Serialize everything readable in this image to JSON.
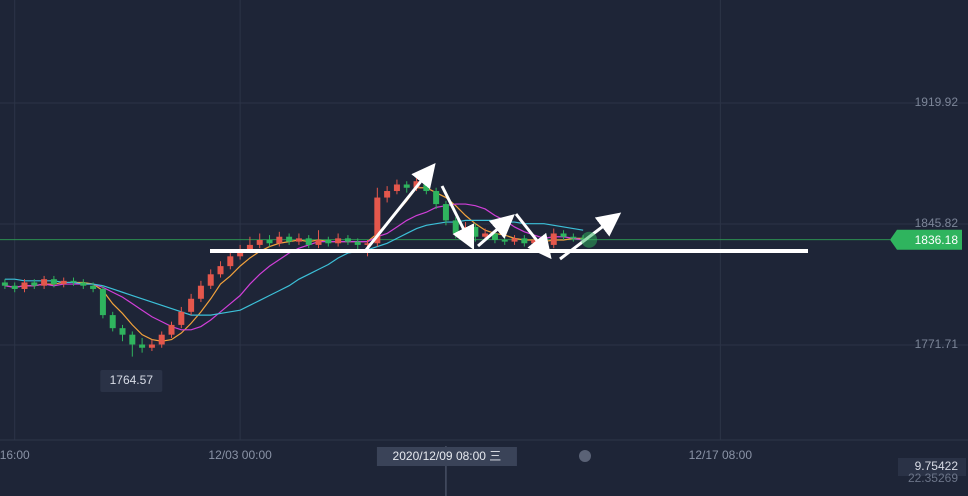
{
  "chart_data": {
    "type": "candlestick",
    "up_color": "#e4574c",
    "down_color": "#2fb45e",
    "open": [
      1810,
      1808,
      1806,
      1810,
      1808,
      1812,
      1809,
      1811,
      1810,
      1808,
      1806,
      1790,
      1782,
      1778,
      1772,
      1770,
      1772,
      1778,
      1784,
      1792,
      1800,
      1808,
      1815,
      1820,
      1826,
      1830,
      1833,
      1836,
      1834,
      1838,
      1835,
      1837,
      1833,
      1836,
      1834,
      1837,
      1835,
      1833,
      1834,
      1862,
      1866,
      1870,
      1868,
      1872,
      1866,
      1858,
      1848,
      1840,
      1844,
      1838,
      1840,
      1836,
      1835,
      1837,
      1834,
      1836,
      1833,
      1840,
      1838,
      1837
    ],
    "high": [
      1812,
      1810,
      1812,
      1812,
      1814,
      1814,
      1813,
      1813,
      1812,
      1810,
      1808,
      1792,
      1784,
      1780,
      1776,
      1775,
      1780,
      1786,
      1795,
      1803,
      1811,
      1818,
      1823,
      1829,
      1833,
      1838,
      1840,
      1839,
      1841,
      1840,
      1840,
      1839,
      1842,
      1838,
      1840,
      1839,
      1837,
      1836,
      1868,
      1869,
      1873,
      1872,
      1876,
      1874,
      1868,
      1860,
      1850,
      1847,
      1846,
      1843,
      1842,
      1838,
      1839,
      1839,
      1838,
      1838,
      1843,
      1842,
      1840,
      1839
    ],
    "low": [
      1806,
      1804,
      1804,
      1806,
      1806,
      1807,
      1807,
      1808,
      1806,
      1804,
      1788,
      1780,
      1774,
      1764.57,
      1767,
      1768,
      1770,
      1776,
      1782,
      1790,
      1798,
      1806,
      1813,
      1818,
      1824,
      1828,
      1831,
      1832,
      1832,
      1833,
      1833,
      1831,
      1831,
      1832,
      1832,
      1833,
      1830,
      1826,
      1832,
      1859,
      1864,
      1865,
      1866,
      1864,
      1855,
      1845,
      1837,
      1838,
      1835,
      1836,
      1834,
      1833,
      1833,
      1832,
      1832,
      1831,
      1831,
      1836,
      1835,
      1834
    ],
    "close": [
      1808,
      1806,
      1810,
      1808,
      1812,
      1809,
      1811,
      1810,
      1808,
      1806,
      1790,
      1782,
      1778,
      1772,
      1770,
      1772,
      1778,
      1784,
      1792,
      1800,
      1808,
      1815,
      1820,
      1826,
      1830,
      1833,
      1836,
      1834,
      1838,
      1835,
      1837,
      1833,
      1836,
      1834,
      1837,
      1835,
      1833,
      1834,
      1862,
      1866,
      1870,
      1868,
      1872,
      1866,
      1858,
      1848,
      1840,
      1844,
      1838,
      1840,
      1836,
      1835,
      1837,
      1834,
      1836,
      1833,
      1840,
      1838,
      1837,
      1836.18
    ],
    "series": [
      {
        "color": "#f2a23c",
        "values": [
          1808,
          1807,
          1808,
          1808,
          1809,
          1809,
          1810,
          1810,
          1810,
          1809,
          1805,
          1797,
          1791,
          1784,
          1778,
          1775,
          1774,
          1775,
          1779,
          1785,
          1792,
          1800,
          1809,
          1814,
          1820,
          1825,
          1829,
          1832,
          1834,
          1835,
          1836,
          1835,
          1836,
          1835,
          1835,
          1835,
          1835,
          1835,
          1840,
          1846,
          1853,
          1860,
          1868,
          1868,
          1865,
          1862,
          1857,
          1851,
          1846,
          1842,
          1840,
          1839,
          1837,
          1836,
          1836,
          1835,
          1836,
          1836,
          1837,
          1837
        ]
      },
      {
        "color": "#d03fd8",
        "values": [
          1808,
          1807,
          1808,
          1808,
          1809,
          1808,
          1809,
          1809,
          1809,
          1809,
          1807,
          1804,
          1801,
          1797,
          1793,
          1789,
          1786,
          1783,
          1781,
          1781,
          1783,
          1787,
          1792,
          1797,
          1802,
          1809,
          1815,
          1820,
          1824,
          1828,
          1831,
          1833,
          1835,
          1835,
          1835,
          1835,
          1835,
          1835,
          1838,
          1840,
          1844,
          1848,
          1851,
          1853,
          1856,
          1857,
          1858,
          1858,
          1857,
          1855,
          1851,
          1848,
          1844,
          1841,
          1839,
          1837,
          1838,
          1838,
          1837,
          1836
        ]
      },
      {
        "color": "#3cc0d8",
        "values": [
          1812,
          1812,
          1811,
          1811,
          1811,
          1811,
          1810,
          1810,
          1809,
          1809,
          1808,
          1806,
          1804,
          1802,
          1800,
          1798,
          1796,
          1794,
          1792,
          1790,
          1790,
          1790,
          1791,
          1792,
          1793,
          1796,
          1799,
          1802,
          1805,
          1808,
          1812,
          1815,
          1818,
          1821,
          1825,
          1828,
          1829,
          1830,
          1832,
          1834,
          1837,
          1840,
          1843,
          1845,
          1846,
          1847,
          1847,
          1848,
          1848,
          1848,
          1848,
          1847,
          1847,
          1846,
          1846,
          1846,
          1845,
          1844,
          1843,
          1842
        ]
      }
    ],
    "xlim": [
      -0.5,
      91.33
    ],
    "xticks": [
      {
        "value": 1,
        "label": "16:00"
      },
      {
        "value": 24,
        "label": "12/03 00:00"
      },
      {
        "value": 73,
        "label": "12/17 08:00"
      }
    ],
    "crosshair": {
      "value": 45,
      "label": "2020/12/09 08:00 三"
    },
    "ylim": [
      1713.5,
      1983.0
    ],
    "yticks": [
      1771.71,
      1845.82,
      1919.92
    ],
    "lower_axis_labels": [
      "9.75422",
      "22.35269"
    ],
    "grid": true
  }
}
